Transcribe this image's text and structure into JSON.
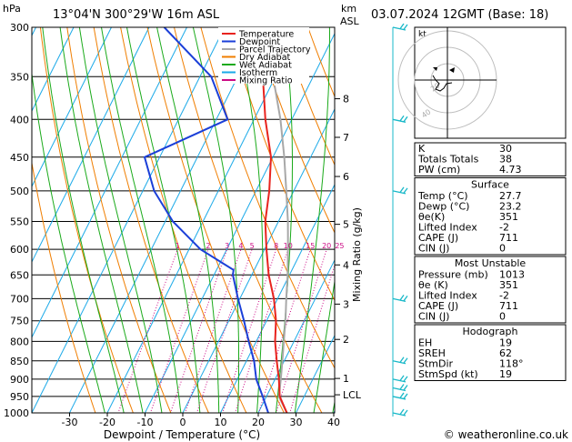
{
  "header": {
    "hpa_label": "hPa",
    "location": "13°04'N  300°29'W  16m  ASL",
    "km_label": "km",
    "asl_label": "ASL",
    "date": "03.07.2024  12GMT  (Base: 18)"
  },
  "footer": {
    "credit": "© weatheronline.co.uk"
  },
  "colors": {
    "temperature": "#e8231e",
    "dewpoint": "#1b3fd8",
    "parcel": "#a8a8a8",
    "dry_adiabat": "#f07e00",
    "wet_adiabat": "#1aaa1a",
    "isotherm": "#1aa9e8",
    "mixing_ratio": "#cc0a84",
    "wind_barb": "#18b8c8"
  },
  "chart_data": {
    "type": "skew-t log-p",
    "xlabel": "Dewpoint / Temperature (°C)",
    "ylabel": "Mixing Ratio (g/kg)",
    "x_ticks": [
      -30,
      -20,
      -10,
      0,
      10,
      20,
      30,
      40
    ],
    "pressure_levels": [
      300,
      350,
      400,
      450,
      500,
      550,
      600,
      650,
      700,
      750,
      800,
      850,
      900,
      950,
      1000
    ],
    "km_ticks": [
      {
        "label": "8",
        "p": 375
      },
      {
        "label": "7",
        "p": 423
      },
      {
        "label": "6",
        "p": 478
      },
      {
        "label": "5",
        "p": 555
      },
      {
        "label": "4",
        "p": 630
      },
      {
        "label": "3",
        "p": 712
      },
      {
        "label": "2",
        "p": 795
      },
      {
        "label": "1",
        "p": 898
      },
      {
        "label": "LCL",
        "p": 945
      }
    ],
    "mixing_ratio_labels": [
      {
        "label": "1",
        "w": 1
      },
      {
        "label": "2",
        "w": 2
      },
      {
        "label": "3",
        "w": 3
      },
      {
        "label": "4",
        "w": 4
      },
      {
        "label": "5",
        "w": 5
      },
      {
        "label": "8",
        "w": 8
      },
      {
        "label": "10",
        "w": 10
      },
      {
        "label": "15",
        "w": 15
      },
      {
        "label": "20",
        "w": 20
      },
      {
        "label": "25",
        "w": 25
      }
    ],
    "legend": [
      {
        "name": "Temperature",
        "color": "#e8231e"
      },
      {
        "name": "Dewpoint",
        "color": "#1b3fd8"
      },
      {
        "name": "Parcel Trajectory",
        "color": "#a8a8a8"
      },
      {
        "name": "Dry Adiabat",
        "color": "#f07e00"
      },
      {
        "name": "Wet Adiabat",
        "color": "#1aaa1a"
      },
      {
        "name": "Isotherm",
        "color": "#1aa9e8"
      },
      {
        "name": "Mixing Ratio",
        "color": "#cc0a84"
      }
    ],
    "temperature": [
      {
        "p": 1005,
        "t": 28
      },
      {
        "p": 950,
        "t": 23.5
      },
      {
        "p": 900,
        "t": 21
      },
      {
        "p": 850,
        "t": 18
      },
      {
        "p": 800,
        "t": 15
      },
      {
        "p": 750,
        "t": 12.5
      },
      {
        "p": 700,
        "t": 9
      },
      {
        "p": 650,
        "t": 4.5
      },
      {
        "p": 600,
        "t": 0.5
      },
      {
        "p": 550,
        "t": -3.5
      },
      {
        "p": 500,
        "t": -6.5
      },
      {
        "p": 450,
        "t": -10.5
      },
      {
        "p": 400,
        "t": -17
      },
      {
        "p": 360,
        "t": -22
      }
    ],
    "dewpoint": [
      {
        "p": 1005,
        "t": 23
      },
      {
        "p": 950,
        "t": 19
      },
      {
        "p": 900,
        "t": 15
      },
      {
        "p": 850,
        "t": 12
      },
      {
        "p": 800,
        "t": 8
      },
      {
        "p": 750,
        "t": 4
      },
      {
        "p": 700,
        "t": -0.5
      },
      {
        "p": 650,
        "t": -5
      },
      {
        "p": 640,
        "t": -5.5
      },
      {
        "p": 600,
        "t": -17
      },
      {
        "p": 550,
        "t": -28
      },
      {
        "p": 500,
        "t": -37
      },
      {
        "p": 450,
        "t": -44
      },
      {
        "p": 400,
        "t": -27
      },
      {
        "p": 350,
        "t": -37
      },
      {
        "p": 300,
        "t": -56
      }
    ],
    "parcel": [
      {
        "p": 1005,
        "t": 28
      },
      {
        "p": 950,
        "t": 23.3
      },
      {
        "p": 900,
        "t": 21.5
      },
      {
        "p": 850,
        "t": 19.5
      },
      {
        "p": 800,
        "t": 17.3
      },
      {
        "p": 750,
        "t": 15
      },
      {
        "p": 700,
        "t": 12.3
      },
      {
        "p": 650,
        "t": 9.5
      },
      {
        "p": 600,
        "t": 6.2
      },
      {
        "p": 550,
        "t": 2.5
      },
      {
        "p": 500,
        "t": -2
      },
      {
        "p": 450,
        "t": -7
      },
      {
        "p": 400,
        "t": -13
      },
      {
        "p": 360,
        "t": -19
      }
    ],
    "wind_barb_levels": [
      300,
      400,
      500,
      700,
      850,
      900,
      925,
      950,
      1000
    ]
  },
  "hodograph": {
    "unit_label": "kt",
    "ring_labels": [
      "20",
      "40"
    ]
  },
  "indices": {
    "rows": [
      {
        "label": "K",
        "value": "30"
      },
      {
        "label": "Totals Totals",
        "value": "38"
      },
      {
        "label": "PW (cm)",
        "value": "4.73"
      }
    ]
  },
  "surface": {
    "title": "Surface",
    "rows": [
      {
        "label": "Temp (°C)",
        "value": "27.7"
      },
      {
        "label": "Dewp (°C)",
        "value": "23.2"
      },
      {
        "label": "θe(K)",
        "value": "351"
      },
      {
        "label": "Lifted Index",
        "value": "-2"
      },
      {
        "label": "CAPE (J)",
        "value": "711"
      },
      {
        "label": "CIN (J)",
        "value": "0"
      }
    ]
  },
  "most_unstable": {
    "title": "Most Unstable",
    "rows": [
      {
        "label": "Pressure (mb)",
        "value": "1013"
      },
      {
        "label": "θe (K)",
        "value": "351"
      },
      {
        "label": "Lifted Index",
        "value": "-2"
      },
      {
        "label": "CAPE (J)",
        "value": "711"
      },
      {
        "label": "CIN (J)",
        "value": "0"
      }
    ]
  },
  "hodograph_table": {
    "title": "Hodograph",
    "rows": [
      {
        "label": "EH",
        "value": "19"
      },
      {
        "label": "SREH",
        "value": "62"
      },
      {
        "label": "StmDir",
        "value": "118°"
      },
      {
        "label": "StmSpd (kt)",
        "value": "19"
      }
    ]
  }
}
